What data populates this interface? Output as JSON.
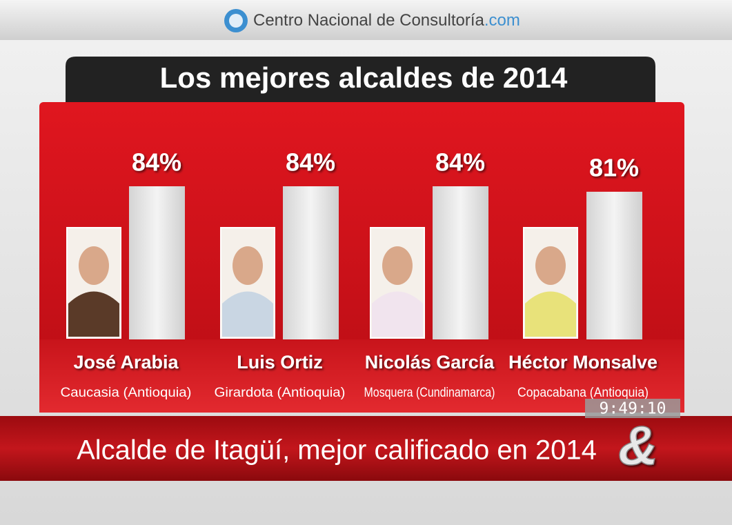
{
  "header": {
    "brand": "Centro Nacional de Consultoría",
    "suffix": ".com"
  },
  "chart_data": {
    "type": "bar",
    "title": "Los mejores alcaldes de 2014",
    "categories": [
      "José Arabia",
      "Luis Ortiz",
      "Nicolás García",
      "Héctor Monsalve"
    ],
    "locations": [
      "Caucasia (Antioquia)",
      "Girardota (Antioquia)",
      "Mosquera (Cundinamarca)",
      "Copacabana (Antioquia)"
    ],
    "values": [
      84,
      84,
      84,
      81
    ],
    "value_labels": [
      "84%",
      "84%",
      "84%",
      "81%"
    ]
  },
  "banner": {
    "headline": "Alcalde de Itagüí, mejor calificado en 2014",
    "time": "9:49:10",
    "logo": "&"
  }
}
